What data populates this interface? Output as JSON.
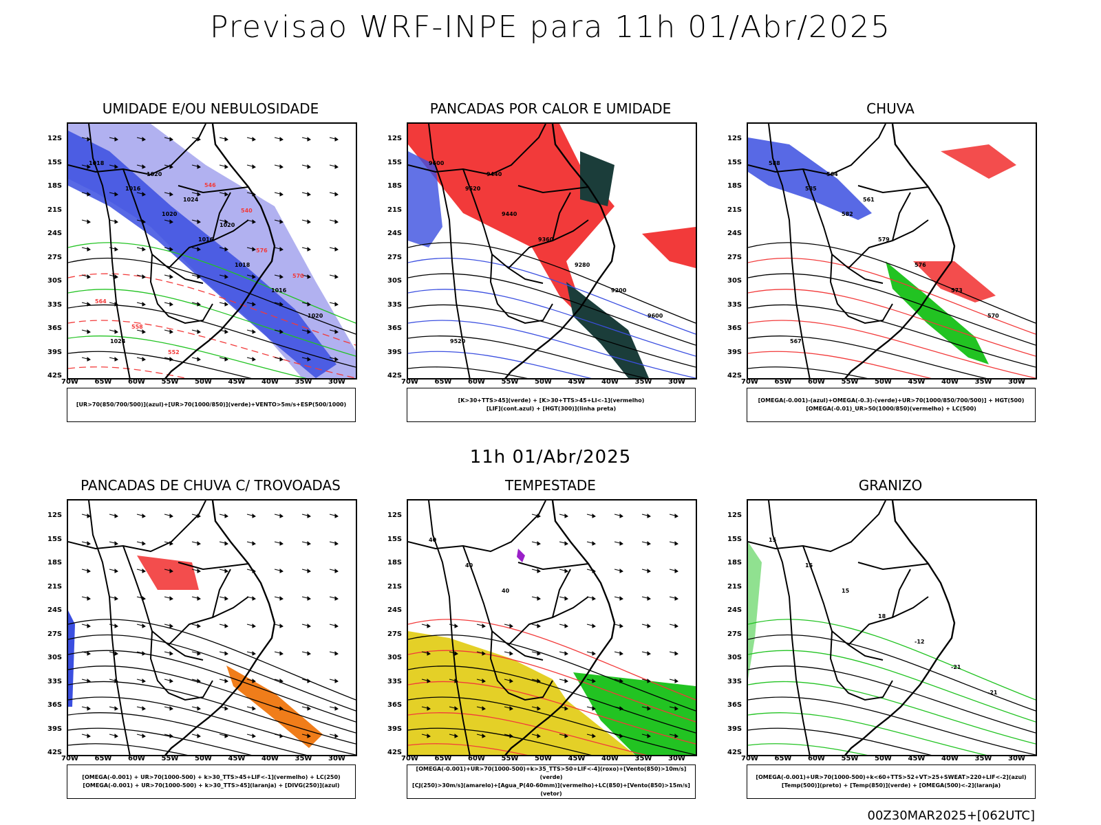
{
  "main_title": "Previsao WRF-INPE  para 11h 01/Abr/2025",
  "sub_title": "11h 01/Abr/2025",
  "run_stamp": "00Z30MAR2025+[062UTC]",
  "lat_labels": [
    "12S",
    "15S",
    "18S",
    "21S",
    "24S",
    "27S",
    "30S",
    "33S",
    "36S",
    "39S",
    "42S"
  ],
  "lon_labels": [
    "70W",
    "65W",
    "60W",
    "55W",
    "50W",
    "45W",
    "40W",
    "35W",
    "30W"
  ],
  "panels": [
    {
      "title": "UMIDADE E/OU NEBULOSIDADE",
      "legend": [
        "[UR>70(850/700/500)](azul)+[UR>70(1000/850)](verde)+VENTO>5m/s+ESP(500/1000)"
      ],
      "contour_labels": [
        "1018",
        "1016",
        "1020",
        "1016",
        "1018",
        "1016",
        "1020",
        "1024",
        "1020",
        "1024",
        "1020",
        "576",
        "570",
        "564",
        "558",
        "552",
        "546",
        "540"
      ]
    },
    {
      "title": "PANCADAS POR CALOR E UMIDADE",
      "legend": [
        "[K>30+TTS>45](verde)  +  [K>30+TTS>45+LI<-1](vermelho)",
        "[LIF](cont.azul)  +  [HGT(300)](linha preta)"
      ],
      "contour_labels": [
        "9600",
        "9520",
        "9440",
        "9360",
        "9280",
        "9200",
        "9600",
        "9520",
        "9440"
      ]
    },
    {
      "title": "CHUVA",
      "legend": [
        "[OMEGA(-0.001)-(azul)+OMEGA(-0.3)-(verde)+UR>70(1000/850/700/500)]  +  HGT(500)",
        "[OMEGA(-0.01)_UR>50(1000/850)(vermelho)  +  LC(500)"
      ],
      "contour_labels": [
        "588",
        "585",
        "582",
        "579",
        "576",
        "573",
        "570",
        "567",
        "564",
        "561"
      ]
    },
    {
      "title": "PANCADAS DE CHUVA C/ TROVOADAS",
      "legend": [
        "[OMEGA(-0.001)  +  UR>70(1000-500)  +  k>30_TTS>45+LIF<-1](vermelho)  +  LC(250)",
        "[OMEGA(-0.001)  +  UR>70(1000-500)  +  k>30_TTS>45](laranja)  +  [DIVG(250)](azul)"
      ],
      "contour_labels": []
    },
    {
      "title": "TEMPESTADE",
      "legend": [
        "[OMEGA(-0.001)+UR>70(1000-500)+k>35_TTS>50+LIF<-4](roxo)+[Vento(850)>10m/s](verde)",
        "[CJ(250)>30m/s](amarelo)+[Agua_P(40-60mm)](vermelho)+LC(850)+[Vento(850)>15m/s](vetor)"
      ],
      "contour_labels": [
        "40",
        "40",
        "40"
      ]
    },
    {
      "title": "GRANIZO",
      "legend": [
        "[OMEGA(-0.001)+UR>70(1000-500)+k<60+TTS>52+VT>25+SWEAT>220+LIF<-2](azul)",
        "[Temp(500)](preto)  +  [Temp(850)](verde)  +  [OMEGA(500)<-2](laranja)"
      ],
      "contour_labels": [
        "15",
        "15",
        "15",
        "18",
        "-12",
        "-21",
        "-21"
      ]
    }
  ],
  "colors": {
    "blue": "#3b4fe0",
    "lightblue": "#a8a8ee",
    "green": "#22c322",
    "red": "#f23a3a",
    "darkgreen": "#1b3d3a",
    "orange": "#f07d1a",
    "yellow": "#e4d027",
    "purple": "#9a20c8"
  }
}
